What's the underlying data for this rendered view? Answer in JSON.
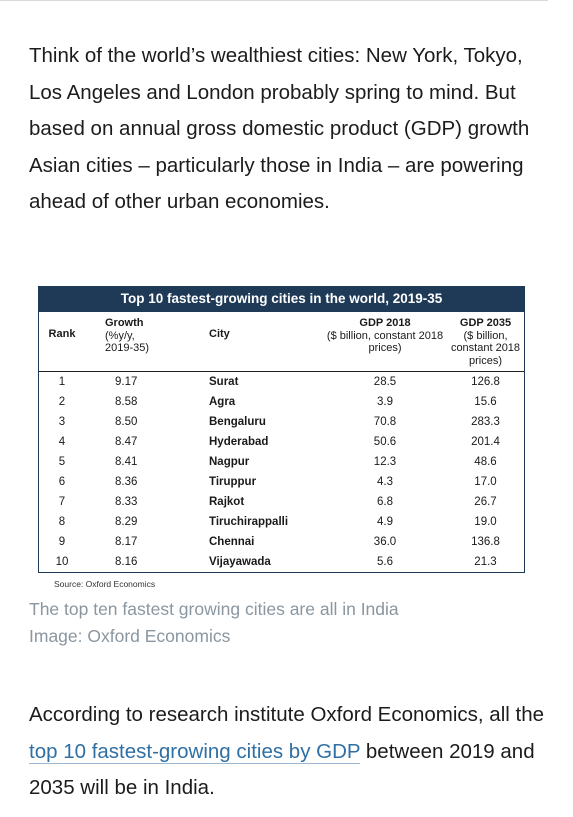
{
  "article": {
    "intro": "Think of the world’s wealthiest cities: New York, Tokyo, Los Angeles and London probably spring to mind. But based on annual gross domestic product (GDP) growth Asian cities – particularly those in India – are powering ahead of other urban economies.",
    "caption_line1": "The top ten fastest growing cities are all in India",
    "caption_line2": "Image: Oxford Economics",
    "para2_before": "According to research institute Oxford Economics, all the ",
    "para2_link": "top 10 fastest-growing cities by GDP",
    "para2_after": " between 2019 and 2035 will be in India."
  },
  "chart_data": {
    "type": "table",
    "title": "Top 10 fastest-growing cities in the world, 2019-35",
    "headers": {
      "rank": "Rank",
      "growth": "Growth",
      "growth_sub": "(%y/y, 2019-35)",
      "city": "City",
      "gdp2018": "GDP 2018",
      "gdp2018_sub": "($ billion, constant 2018 prices)",
      "gdp2035": "GDP 2035",
      "gdp2035_sub": "($ billion, constant 2018 prices)"
    },
    "rows": [
      {
        "rank": "1",
        "growth": "9.17",
        "city": "Surat",
        "gdp2018": "28.5",
        "gdp2035": "126.8"
      },
      {
        "rank": "2",
        "growth": "8.58",
        "city": "Agra",
        "gdp2018": "3.9",
        "gdp2035": "15.6"
      },
      {
        "rank": "3",
        "growth": "8.50",
        "city": "Bengaluru",
        "gdp2018": "70.8",
        "gdp2035": "283.3"
      },
      {
        "rank": "4",
        "growth": "8.47",
        "city": "Hyderabad",
        "gdp2018": "50.6",
        "gdp2035": "201.4"
      },
      {
        "rank": "5",
        "growth": "8.41",
        "city": "Nagpur",
        "gdp2018": "12.3",
        "gdp2035": "48.6"
      },
      {
        "rank": "6",
        "growth": "8.36",
        "city": "Tiruppur",
        "gdp2018": "4.3",
        "gdp2035": "17.0"
      },
      {
        "rank": "7",
        "growth": "8.33",
        "city": "Rajkot",
        "gdp2018": "6.8",
        "gdp2035": "26.7"
      },
      {
        "rank": "8",
        "growth": "8.29",
        "city": "Tiruchirappalli",
        "gdp2018": "4.9",
        "gdp2035": "19.0"
      },
      {
        "rank": "9",
        "growth": "8.17",
        "city": "Chennai",
        "gdp2018": "36.0",
        "gdp2035": "136.8"
      },
      {
        "rank": "10",
        "growth": "8.16",
        "city": "Vijayawada",
        "gdp2018": "5.6",
        "gdp2035": "21.3"
      }
    ],
    "source": "Source: Oxford Economics"
  },
  "colors": {
    "header_bg": "#1f3a57",
    "link": "#2f6fa3",
    "caption": "#8a96a0"
  }
}
